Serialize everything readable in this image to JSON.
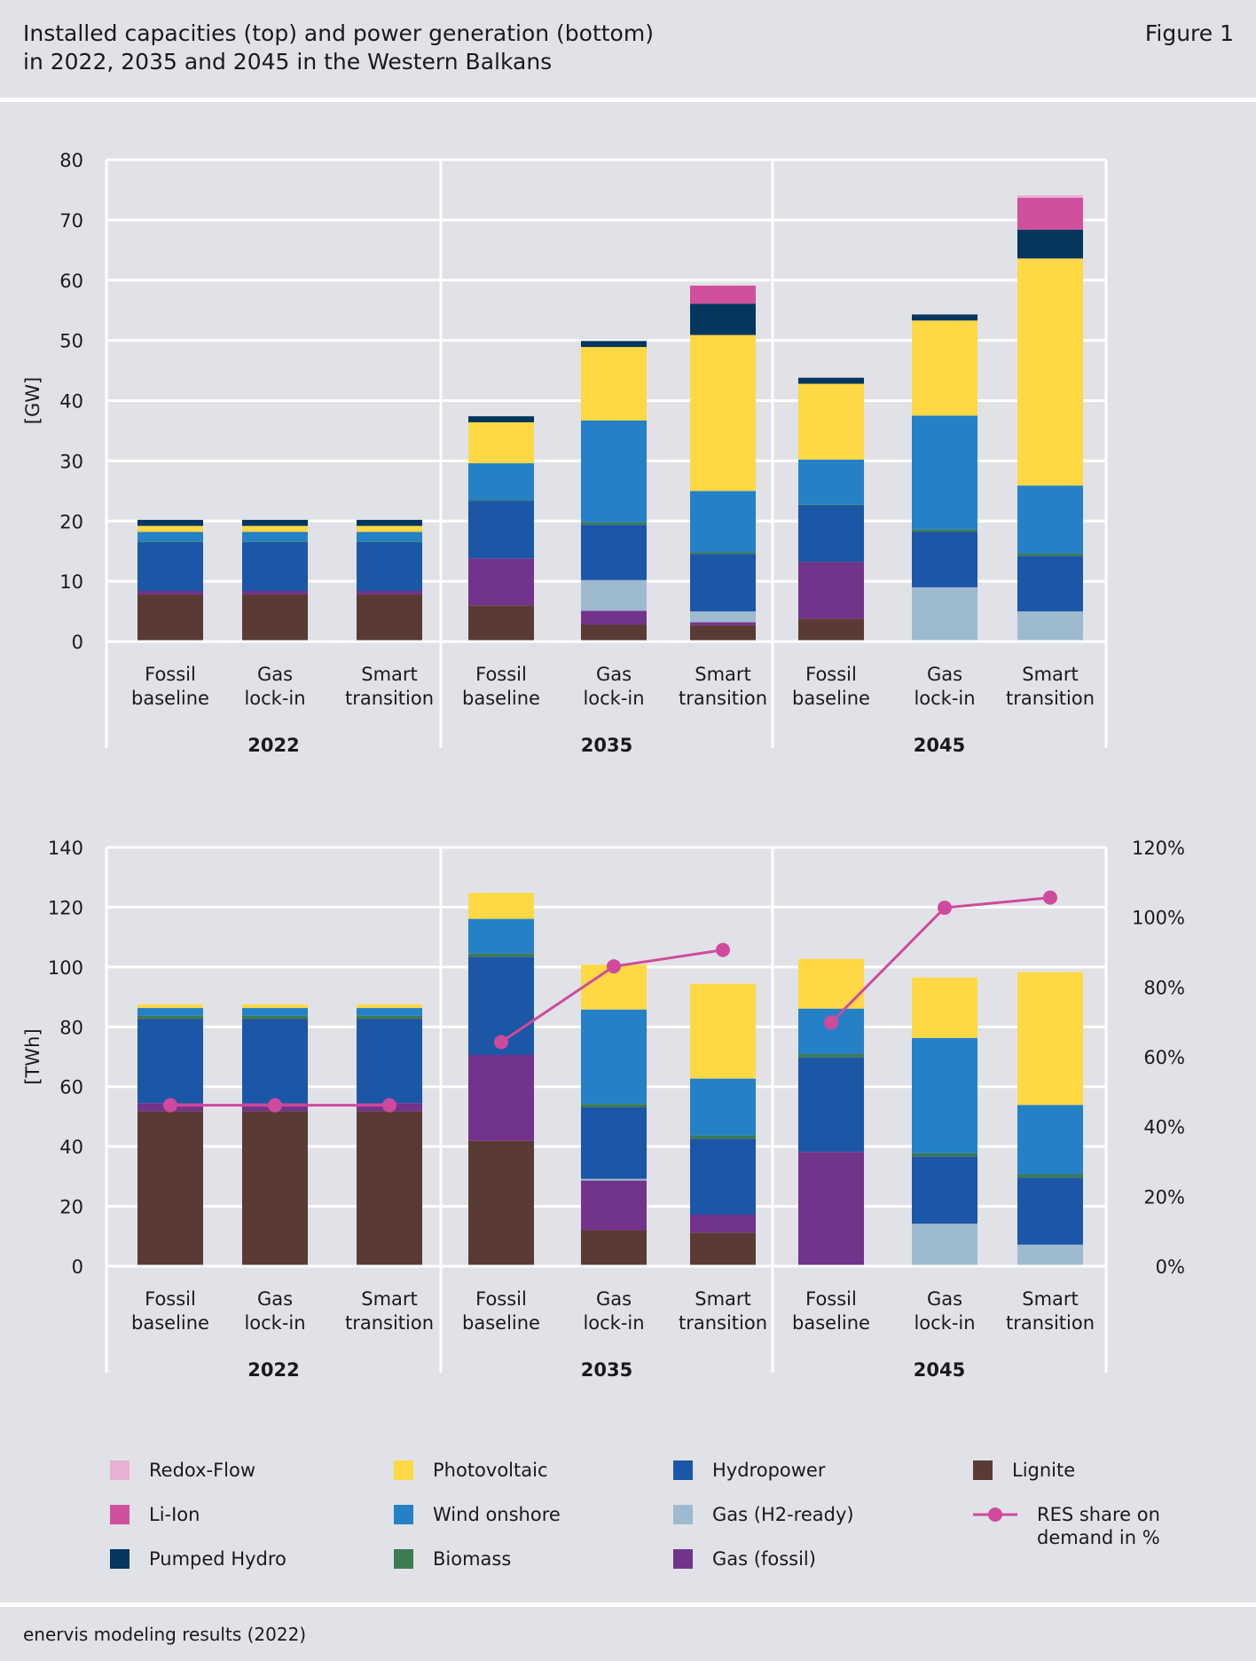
{
  "header": {
    "title_line1": "Installed capacities (top) and power generation (bottom)",
    "title_line2": "in 2022, 2035 and 2045 in the Western Balkans",
    "figure_label": "Figure 1"
  },
  "footer": {
    "source": "enervis modeling results (2022)"
  },
  "colors": {
    "Lignite": "#5a3a35",
    "Gas (fossil)": "#72338a",
    "Gas (H2-ready)": "#9dbacf",
    "Hydropower": "#1c56a7",
    "Biomass": "#3e7a52",
    "Wind onshore": "#2481c6",
    "Photovoltaic": "#fed845",
    "Pumped Hydro": "#04365e",
    "Li-Ion": "#d0509c",
    "Redox-Flow": "#e9b0d3",
    "RES share": "#cf4a9c"
  },
  "legend": [
    {
      "key": "Redox-Flow",
      "label": "Redox-Flow"
    },
    {
      "key": "Li-Ion",
      "label": "Li-Ion"
    },
    {
      "key": "Pumped Hydro",
      "label": "Pumped Hydro"
    },
    {
      "key": "Photovoltaic",
      "label": "Photovoltaic"
    },
    {
      "key": "Wind onshore",
      "label": "Wind onshore"
    },
    {
      "key": "Biomass",
      "label": "Biomass"
    },
    {
      "key": "Hydropower",
      "label": "Hydropower"
    },
    {
      "key": "Gas (H2-ready)",
      "label": "Gas (H2-ready)"
    },
    {
      "key": "Gas (fossil)",
      "label": "Gas (fossil)"
    },
    {
      "key": "Lignite",
      "label": "Lignite"
    },
    {
      "key": "RES share",
      "label": "RES share on demand in %"
    }
  ],
  "chart_data": [
    {
      "type": "bar",
      "stacked": true,
      "ylabel": "[GW]",
      "ylim": [
        0,
        80
      ],
      "yticks": [
        0,
        10,
        20,
        30,
        40,
        50,
        60,
        70,
        80
      ],
      "groups": [
        "2022",
        "2035",
        "2045"
      ],
      "categories": [
        "Fossil baseline",
        "Gas lock-in",
        "Smart transition",
        "Fossil baseline",
        "Gas lock-in",
        "Smart transition",
        "Fossil baseline",
        "Gas lock-in",
        "Smart transition"
      ],
      "series": [
        {
          "name": "Lignite",
          "values": [
            7.8,
            7.8,
            7.8,
            6.0,
            2.8,
            2.7,
            3.8,
            0,
            0
          ]
        },
        {
          "name": "Gas (fossil)",
          "values": [
            0.6,
            0.6,
            0.6,
            7.8,
            2.3,
            0.5,
            9.4,
            0,
            0
          ]
        },
        {
          "name": "Gas (H2-ready)",
          "values": [
            0,
            0,
            0,
            0,
            5.1,
            1.8,
            0,
            9.0,
            5.0
          ]
        },
        {
          "name": "Hydropower",
          "values": [
            8.1,
            8.1,
            8.1,
            9.6,
            9.2,
            9.5,
            9.5,
            9.2,
            9.2
          ]
        },
        {
          "name": "Biomass",
          "values": [
            0.1,
            0.1,
            0.1,
            0.1,
            0.4,
            0.3,
            0.1,
            0.4,
            0.4
          ]
        },
        {
          "name": "Wind onshore",
          "values": [
            1.6,
            1.6,
            1.6,
            6.1,
            16.9,
            10.2,
            7.4,
            18.9,
            11.3
          ]
        },
        {
          "name": "Photovoltaic",
          "values": [
            1.0,
            1.0,
            1.0,
            6.8,
            12.2,
            25.9,
            12.6,
            15.8,
            37.7
          ]
        },
        {
          "name": "Pumped Hydro",
          "values": [
            1.0,
            1.0,
            1.0,
            1.0,
            1.0,
            5.2,
            1.0,
            1.0,
            4.8
          ]
        },
        {
          "name": "Li-Ion",
          "values": [
            0,
            0,
            0,
            0,
            0,
            3.0,
            0,
            0,
            5.3
          ]
        },
        {
          "name": "Redox-Flow",
          "values": [
            0,
            0,
            0,
            0,
            0,
            0,
            0,
            0,
            0.4
          ]
        }
      ]
    },
    {
      "type": "bar",
      "stacked": true,
      "ylabel": "[TWh]",
      "ylim": [
        0,
        140
      ],
      "yticks": [
        0,
        20,
        40,
        60,
        80,
        100,
        120,
        140
      ],
      "y2lim": [
        0,
        120
      ],
      "y2ticks": [
        0,
        20,
        40,
        60,
        80,
        100,
        120
      ],
      "y2ticklabels": [
        "0%",
        "20%",
        "40%",
        "60%",
        "80%",
        "100%",
        "120%"
      ],
      "groups": [
        "2022",
        "2035",
        "2045"
      ],
      "categories": [
        "Fossil baseline",
        "Gas lock-in",
        "Smart transition",
        "Fossil baseline",
        "Gas lock-in",
        "Smart transition",
        "Fossil baseline",
        "Gas lock-in",
        "Smart transition"
      ],
      "series": [
        {
          "name": "Lignite",
          "values": [
            51.8,
            51.8,
            51.8,
            41.9,
            12.0,
            11.2,
            0,
            0,
            0
          ]
        },
        {
          "name": "Gas (fossil)",
          "values": [
            2.7,
            2.7,
            2.7,
            28.7,
            16.6,
            6.0,
            38.2,
            0,
            0
          ]
        },
        {
          "name": "Gas (H2-ready)",
          "values": [
            0,
            0,
            0,
            0,
            0.6,
            0,
            0,
            14.2,
            7.2
          ]
        },
        {
          "name": "Hydropower",
          "values": [
            28.1,
            28.1,
            28.1,
            32.8,
            23.9,
            25.4,
            31.6,
            22.4,
            22.4
          ]
        },
        {
          "name": "Biomass",
          "values": [
            1.1,
            1.1,
            1.1,
            1.1,
            1.1,
            1.1,
            1.1,
            1.1,
            1.1
          ]
        },
        {
          "name": "Wind onshore",
          "values": [
            2.6,
            2.6,
            2.6,
            11.6,
            31.6,
            19.0,
            15.2,
            38.6,
            23.2
          ]
        },
        {
          "name": "Photovoltaic",
          "values": [
            1.2,
            1.2,
            1.2,
            8.7,
            15.0,
            31.7,
            16.6,
            20.2,
            44.4
          ]
        }
      ],
      "line_series": {
        "name": "RES share on demand in %",
        "axis": "right",
        "values": [
          46.1,
          46.1,
          46.1,
          64.2,
          85.9,
          90.6,
          69.8,
          102.7,
          105.6
        ]
      }
    }
  ]
}
